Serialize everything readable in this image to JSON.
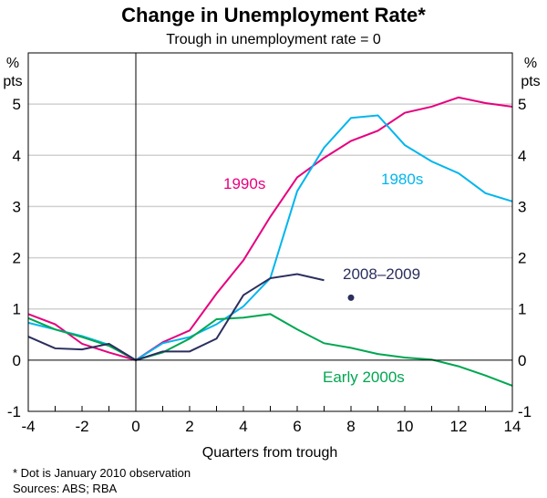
{
  "chart_data": {
    "type": "line",
    "title": "Change in Unemployment Rate*",
    "subtitle": "Trough in unemployment rate = 0",
    "xlabel": "Quarters from trough",
    "ylabel_left": [
      "%",
      "pts"
    ],
    "ylabel_right": [
      "%",
      "pts"
    ],
    "xlim": [
      -4,
      14
    ],
    "ylim": [
      -1,
      6
    ],
    "xticks": [
      -4,
      -2,
      0,
      2,
      4,
      6,
      8,
      10,
      12,
      14
    ],
    "yticks": [
      -1,
      0,
      1,
      2,
      3,
      4,
      5
    ],
    "grid": true,
    "x": [
      -4,
      -3,
      -2,
      -1,
      0,
      1,
      2,
      3,
      4,
      5,
      6,
      7,
      8,
      9,
      10,
      11,
      12,
      13,
      14
    ],
    "series": [
      {
        "name": "1990s",
        "color": "#e6007e",
        "values": [
          0.9,
          0.7,
          0.32,
          0.15,
          0,
          0.35,
          0.58,
          1.3,
          1.95,
          2.8,
          3.57,
          3.95,
          4.28,
          4.48,
          4.83,
          4.95,
          5.13,
          5.02,
          4.95
        ]
      },
      {
        "name": "1980s",
        "color": "#00b5ef",
        "values": [
          0.73,
          0.6,
          0.47,
          0.3,
          0,
          0.33,
          0.45,
          0.7,
          1.05,
          1.6,
          3.3,
          4.15,
          4.73,
          4.78,
          4.2,
          3.88,
          3.65,
          3.26,
          3.1
        ]
      },
      {
        "name": "Early 2000s",
        "color": "#00a651",
        "values": [
          0.82,
          0.6,
          0.45,
          0.28,
          0,
          0.15,
          0.42,
          0.8,
          0.83,
          0.9,
          0.6,
          0.33,
          0.24,
          0.12,
          0.05,
          0.01,
          -0.12,
          -0.3,
          -0.5
        ]
      },
      {
        "name": "2008–2009",
        "color": "#2b2f5e",
        "values": [
          0.46,
          0.23,
          0.21,
          0.32,
          0,
          0.17,
          0.17,
          0.42,
          1.27,
          1.6,
          1.68,
          1.56,
          null,
          null,
          null,
          null,
          null,
          null,
          null
        ]
      }
    ],
    "dot": {
      "x": 8,
      "y": 1.22,
      "color": "#2b2f5e"
    },
    "footnote": "*   Dot is January 2010 observation",
    "sources": "Sources: ABS; RBA"
  }
}
